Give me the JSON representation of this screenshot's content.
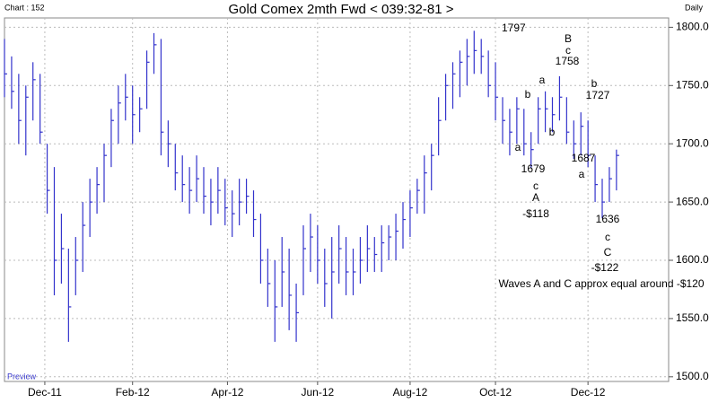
{
  "chart_data": {
    "type": "ohlc",
    "header": "Chart : 152",
    "title": "Gold Comex 2mth Fwd < 039:32-81 >",
    "period": "Daily",
    "footer": "Preview",
    "color": "#3333cc",
    "x": [
      0,
      3,
      6,
      9,
      12,
      15,
      18,
      21,
      24,
      27,
      30,
      33,
      36,
      39,
      42,
      45,
      48,
      51,
      54,
      57,
      60,
      63,
      66,
      69,
      72,
      75,
      78,
      81,
      84,
      87,
      90,
      93,
      96,
      99,
      102,
      105,
      108,
      111,
      114,
      117,
      120,
      123,
      126,
      129,
      132,
      135,
      138,
      141,
      144,
      147,
      150,
      153,
      156,
      159,
      162,
      165,
      168,
      171,
      174,
      177,
      180,
      183,
      186,
      189,
      192,
      195,
      198,
      201,
      204,
      207,
      210,
      213,
      216,
      219,
      222,
      225,
      228,
      231,
      234,
      237,
      240,
      243,
      246,
      249,
      252,
      255,
      258
    ],
    "high": [
      1790,
      1775,
      1760,
      1750,
      1770,
      1760,
      1700,
      1680,
      1640,
      1610,
      1620,
      1650,
      1670,
      1680,
      1700,
      1730,
      1750,
      1760,
      1750,
      1740,
      1780,
      1795,
      1790,
      1720,
      1700,
      1690,
      1680,
      1690,
      1680,
      1670,
      1680,
      1670,
      1660,
      1670,
      1670,
      1660,
      1640,
      1610,
      1600,
      1620,
      1610,
      1580,
      1630,
      1640,
      1630,
      1610,
      1620,
      1630,
      1620,
      1610,
      1620,
      1630,
      1620,
      1630,
      1630,
      1640,
      1650,
      1660,
      1670,
      1690,
      1700,
      1740,
      1760,
      1770,
      1780,
      1790,
      1797,
      1790,
      1780,
      1770,
      1740,
      1730,
      1740,
      1730,
      1710,
      1740,
      1745,
      1740,
      1758,
      1740,
      1720,
      1727,
      1720,
      1690,
      1670,
      1680,
      1695
    ],
    "low": [
      1740,
      1730,
      1700,
      1690,
      1720,
      1700,
      1640,
      1570,
      1580,
      1530,
      1570,
      1590,
      1620,
      1640,
      1650,
      1680,
      1700,
      1720,
      1700,
      1710,
      1730,
      1760,
      1690,
      1680,
      1660,
      1650,
      1640,
      1650,
      1640,
      1630,
      1640,
      1630,
      1620,
      1630,
      1640,
      1620,
      1580,
      1560,
      1530,
      1560,
      1540,
      1530,
      1570,
      1590,
      1580,
      1560,
      1550,
      1580,
      1570,
      1570,
      1580,
      1590,
      1590,
      1590,
      1600,
      1600,
      1610,
      1620,
      1640,
      1640,
      1660,
      1690,
      1720,
      1730,
      1740,
      1750,
      1760,
      1760,
      1740,
      1720,
      1700,
      1690,
      1700,
      1690,
      1679,
      1700,
      1710,
      1710,
      1720,
      1700,
      1687,
      1690,
      1680,
      1650,
      1636,
      1650,
      1660
    ],
    "close": [
      1760,
      1745,
      1720,
      1740,
      1755,
      1710,
      1660,
      1600,
      1610,
      1560,
      1600,
      1630,
      1650,
      1665,
      1690,
      1720,
      1735,
      1740,
      1725,
      1730,
      1770,
      1785,
      1710,
      1700,
      1675,
      1665,
      1660,
      1670,
      1655,
      1650,
      1660,
      1645,
      1640,
      1650,
      1655,
      1635,
      1600,
      1580,
      1560,
      1590,
      1570,
      1555,
      1610,
      1620,
      1600,
      1580,
      1590,
      1610,
      1590,
      1590,
      1600,
      1610,
      1605,
      1615,
      1620,
      1625,
      1635,
      1645,
      1660,
      1675,
      1690,
      1720,
      1750,
      1760,
      1770,
      1775,
      1780,
      1775,
      1750,
      1740,
      1720,
      1710,
      1730,
      1700,
      1695,
      1730,
      1730,
      1725,
      1740,
      1710,
      1700,
      1715,
      1690,
      1665,
      1650,
      1670,
      1690
    ],
    "xlim": [
      0,
      280
    ],
    "xticks": [
      {
        "value": 17,
        "label": "Dec-11"
      },
      {
        "value": 54,
        "label": "Feb-12"
      },
      {
        "value": 94,
        "label": "Apr-12"
      },
      {
        "value": 132,
        "label": "Jun-12"
      },
      {
        "value": 171,
        "label": "Aug-12"
      },
      {
        "value": 207,
        "label": "Oct-12"
      },
      {
        "value": 246,
        "label": "Dec-12"
      }
    ],
    "ylim": [
      1496,
      1808
    ],
    "yticks": [
      {
        "value": 1500,
        "label": "1500.0"
      },
      {
        "value": 1550,
        "label": "1550.0"
      },
      {
        "value": 1600,
        "label": "1600.0"
      },
      {
        "value": 1650,
        "label": "1650.0"
      },
      {
        "value": 1700,
        "label": "1700.0"
      },
      {
        "value": 1750,
        "label": "1750.0"
      },
      {
        "value": 1800,
        "label": "1800.0"
      }
    ],
    "grid": true,
    "annotations": [
      "1797",
      "B",
      "c",
      "1758",
      "a",
      "b",
      "1727",
      "b",
      "a",
      "b",
      "1687",
      "a",
      "1679",
      "c",
      "A",
      "-$118",
      "1636",
      "c",
      "C",
      "-$122",
      "Waves A and C approx equal around -$120"
    ]
  }
}
